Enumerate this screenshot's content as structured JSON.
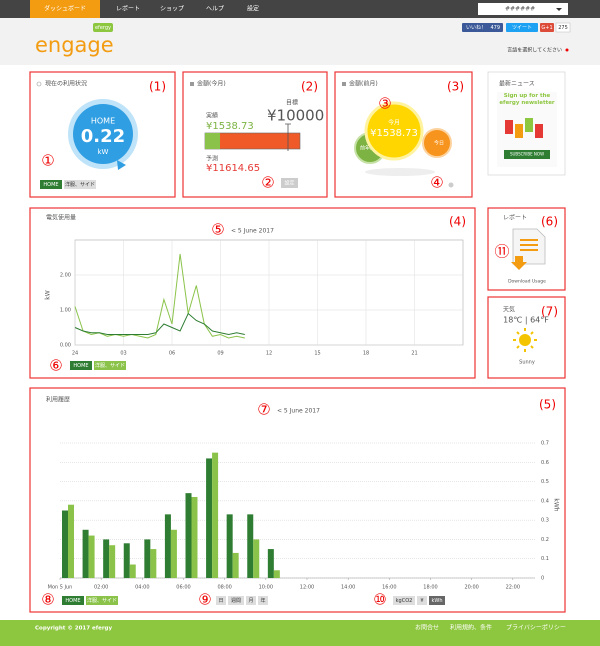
{
  "nav": {
    "items": [
      "ダッシュボード",
      "レポート",
      "ショップ",
      "ヘルプ",
      "設定"
    ],
    "user": "######"
  },
  "header": {
    "logo": "engage",
    "brand": "efergy",
    "like": "いいね！",
    "like_count": 479,
    "tweet": "ツイート",
    "gplus": "G+1",
    "share_count": 275,
    "language": "言語を選択してください"
  },
  "current": {
    "title": "現在の利用状況",
    "label": "HOME",
    "value": 0.22,
    "unit": "kW",
    "tags": [
      "HOME",
      "洋服、サイド"
    ]
  },
  "month": {
    "title": "金額(今月)",
    "target_label": "目標",
    "target": "¥10000",
    "actual_label": "実績",
    "actual": "¥1538.73",
    "forecast_label": "予測",
    "forecast": "¥11614.65",
    "button": "設定"
  },
  "compare": {
    "title": "金額(前月)",
    "center_label": "今月",
    "center_value": "¥1538.73",
    "left_label": "前年同月",
    "right_label": "今日"
  },
  "news": {
    "title": "最新ニュース",
    "headline": "Sign up for the efergy newsletter",
    "button": "SUBSCRIBE NOW"
  },
  "report": {
    "title": "レポート",
    "link": "Download Usage"
  },
  "weather": {
    "title": "天気",
    "temp": "18℃ | 64°F",
    "condition": "Sunny"
  },
  "usage": {
    "title": "電気使用量",
    "date": "< 5 June 2017",
    "y_label": "kW",
    "ylim": [
      0,
      3
    ],
    "yticks": [
      {
        "value": 0,
        "label": "0.00"
      },
      {
        "value": 1,
        "label": "1.00"
      },
      {
        "value": 2,
        "label": "2.00"
      }
    ],
    "xlim": [
      0,
      24
    ],
    "xticks": [
      {
        "value": 0,
        "label": "24"
      },
      {
        "value": 3,
        "label": "03"
      },
      {
        "value": 6,
        "label": "06"
      },
      {
        "value": 9,
        "label": "09"
      },
      12,
      15,
      18,
      21
    ],
    "x": [
      0,
      0.5,
      1,
      1.5,
      2,
      2.5,
      3,
      3.5,
      4,
      4.5,
      5,
      5.5,
      6,
      6.5,
      7,
      7.5,
      8,
      8.5,
      9,
      9.5,
      10,
      10.5
    ],
    "series": [
      {
        "color": "#8bc34a",
        "values": [
          1.1,
          0.4,
          0.3,
          0.35,
          0.25,
          0.3,
          0.25,
          0.3,
          0.25,
          0.2,
          0.3,
          1.3,
          0.6,
          2.6,
          0.9,
          1.7,
          0.6,
          0.25,
          0.3,
          0.2,
          0.25,
          0.2
        ]
      },
      {
        "color": "#2e7d32",
        "values": [
          0.5,
          0.4,
          0.35,
          0.35,
          0.3,
          0.3,
          0.3,
          0.3,
          0.3,
          0.3,
          0.35,
          0.6,
          0.5,
          0.4,
          0.9,
          0.7,
          0.6,
          0.4,
          0.35,
          0.3,
          0.35,
          0.3
        ]
      }
    ],
    "tags": [
      "HOME",
      "洋服、サイド"
    ]
  },
  "history": {
    "title": "利用履歴",
    "date": "< 5 June 2017",
    "y_label": "kWh",
    "ylim": [
      0,
      0.75
    ],
    "yticks": [
      0,
      0.1,
      0.2,
      0.3,
      0.4,
      0.5,
      0.6,
      0.7
    ],
    "xlim": [
      0,
      24
    ],
    "xticks": [
      {
        "value": 0,
        "label": "Mon 5 Jun"
      },
      {
        "value": 2,
        "label": "02:00"
      },
      {
        "value": 4,
        "label": "04:00"
      },
      {
        "value": 6,
        "label": "06:00"
      },
      {
        "value": 8,
        "label": "08:00"
      },
      {
        "value": 10,
        "label": "10:00"
      },
      {
        "value": 12,
        "label": "12:00"
      },
      {
        "value": 14,
        "label": "14:00"
      },
      {
        "value": 16,
        "label": "16:00"
      },
      {
        "value": 18,
        "label": "18:00"
      },
      {
        "value": 20,
        "label": "20:00"
      },
      {
        "value": 22,
        "label": "22:00"
      }
    ],
    "x": [
      0,
      1,
      2,
      3,
      4,
      5,
      6,
      7,
      8,
      9,
      10
    ],
    "series": [
      {
        "color": "#2e7d32",
        "values": [
          0.35,
          0.25,
          0.2,
          0.18,
          0.2,
          0.33,
          0.44,
          0.62,
          0.33,
          0.33,
          0.15
        ]
      },
      {
        "color": "#8bc34a",
        "values": [
          0.38,
          0.22,
          0.17,
          0.07,
          0.15,
          0.25,
          0.42,
          0.65,
          0.13,
          0.2,
          0.04
        ]
      }
    ],
    "tags": [
      "HOME",
      "洋服、サイド"
    ],
    "periods": [
      "日",
      "週間",
      "月",
      "年"
    ],
    "units": [
      "kgCO2",
      "¥",
      "kWh"
    ]
  },
  "footer": {
    "copyright": "Copyright © 2017 efergy",
    "links": [
      "お問合せ",
      "利用規約、条件",
      "プライバシーポリシー"
    ]
  },
  "annotations": {
    "boxes": [
      "(1)",
      "(2)",
      "(3)",
      "(4)",
      "(5)",
      "(6)",
      "(7)"
    ],
    "markers": [
      "①",
      "②",
      "③",
      "④",
      "⑤",
      "⑥",
      "⑦",
      "⑧",
      "⑨",
      "⑩",
      "⑪"
    ]
  }
}
